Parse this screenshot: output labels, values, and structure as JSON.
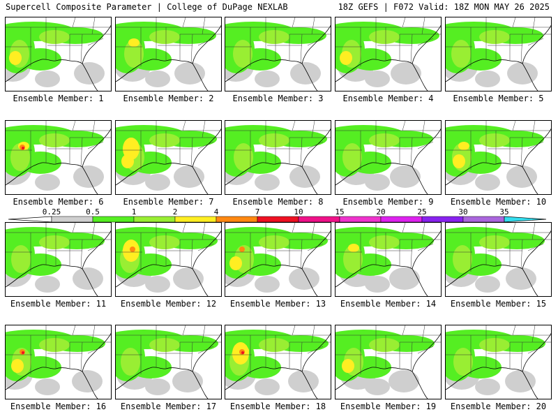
{
  "header": {
    "title_left": "Supercell Composite Parameter | College of DuPage NEXLAB",
    "title_right": "18Z GEFS | F072 Valid: 18Z MON MAY 26 2025"
  },
  "colorbar": {
    "ticks": [
      "0.25",
      "0.5",
      "1",
      "2",
      "4",
      "7",
      "10",
      "15",
      "20",
      "25",
      "30",
      "35"
    ],
    "colors": [
      "#cfcfcf",
      "#55ee22",
      "#99ee33",
      "#ffee22",
      "#ff8811",
      "#ee1122",
      "#ee1188",
      "#ee33cc",
      "#dd22ee",
      "#8822ee",
      "#aa66dd",
      "#33ddee"
    ],
    "arrow_color": "#ffffff"
  },
  "members": [
    {
      "label": "Ensemble Member: 1"
    },
    {
      "label": "Ensemble Member: 2"
    },
    {
      "label": "Ensemble Member: 3"
    },
    {
      "label": "Ensemble Member: 4"
    },
    {
      "label": "Ensemble Member: 5"
    },
    {
      "label": "Ensemble Member: 6"
    },
    {
      "label": "Ensemble Member: 7"
    },
    {
      "label": "Ensemble Member: 8"
    },
    {
      "label": "Ensemble Member: 9"
    },
    {
      "label": "Ensemble Member: 10"
    },
    {
      "label": "Ensemble Member: 11"
    },
    {
      "label": "Ensemble Member: 12"
    },
    {
      "label": "Ensemble Member: 13"
    },
    {
      "label": "Ensemble Member: 14"
    },
    {
      "label": "Ensemble Member: 15"
    },
    {
      "label": "Ensemble Member: 16"
    },
    {
      "label": "Ensemble Member: 17"
    },
    {
      "label": "Ensemble Member: 18"
    },
    {
      "label": "Ensemble Member: 19"
    },
    {
      "label": "Ensemble Member: 20"
    }
  ],
  "map_colors": {
    "gray": "#cfcfcf",
    "green": "#55ee22",
    "lightgreen": "#99ee33",
    "yellow": "#ffee22",
    "orange": "#ff8811",
    "red": "#ee1122"
  }
}
